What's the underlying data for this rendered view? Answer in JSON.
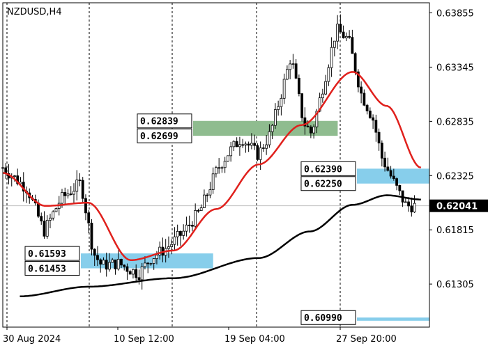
{
  "chart_data": {
    "type": "candlestick",
    "symbol_label": "NZDUSD,H4",
    "ylim": [
      0.609,
      0.6395
    ],
    "y_ticks": [
      "0.63855",
      "0.63345",
      "0.62835",
      "0.62325",
      "0.61815",
      "0.61305"
    ],
    "x_ticks": [
      "30 Aug 2024",
      "10 Sep 12:00",
      "19 Sep 04:00",
      "27 Sep 20:00"
    ],
    "last_price": "0.62041",
    "zones": [
      {
        "color": "#8fbc8f",
        "upper": "0.62839",
        "lower": "0.62699",
        "x0": 0.446,
        "x1": 0.785
      },
      {
        "color": "#87ceeb",
        "upper": "0.62390",
        "lower": "0.62250",
        "x0": 0.83,
        "x1": 1.0
      },
      {
        "color": "#87ceeb",
        "upper": "0.61593",
        "lower": "0.61453",
        "x0": 0.183,
        "x1": 0.493
      },
      {
        "color": "#87ceeb",
        "upper": "0.60990",
        "lower": "",
        "x0": 0.83,
        "x1": 1.0
      }
    ],
    "series": [
      {
        "name": "",
        "color": "#e0201c",
        "anchors": [
          [
            0,
            0.6235
          ],
          [
            0.1,
            0.6204
          ],
          [
            0.2,
            0.6207
          ],
          [
            0.3,
            0.6153
          ],
          [
            0.4,
            0.6162
          ],
          [
            0.5,
            0.6201
          ],
          [
            0.6,
            0.6243
          ],
          [
            0.7,
            0.628
          ],
          [
            0.82,
            0.633
          ],
          [
            0.9,
            0.6298
          ],
          [
            0.98,
            0.624
          ]
        ]
      },
      {
        "name": "",
        "color": "#000000",
        "anchors": [
          [
            0.04,
            0.6119
          ],
          [
            0.2,
            0.6128
          ],
          [
            0.4,
            0.6136
          ],
          [
            0.6,
            0.6155
          ],
          [
            0.72,
            0.618
          ],
          [
            0.82,
            0.6205
          ],
          [
            0.9,
            0.6214
          ],
          [
            0.98,
            0.621
          ]
        ]
      }
    ],
    "candle_path": [
      [
        0,
        0.624
      ],
      [
        0.06,
        0.622
      ],
      [
        0.1,
        0.618
      ],
      [
        0.14,
        0.621
      ],
      [
        0.19,
        0.6226
      ],
      [
        0.22,
        0.616
      ],
      [
        0.24,
        0.6148
      ],
      [
        0.28,
        0.615
      ],
      [
        0.33,
        0.614
      ],
      [
        0.36,
        0.6155
      ],
      [
        0.4,
        0.6165
      ],
      [
        0.44,
        0.618
      ],
      [
        0.48,
        0.62
      ],
      [
        0.52,
        0.6238
      ],
      [
        0.55,
        0.6255
      ],
      [
        0.58,
        0.6268
      ],
      [
        0.62,
        0.6252
      ],
      [
        0.65,
        0.6272
      ],
      [
        0.68,
        0.6315
      ],
      [
        0.7,
        0.6345
      ],
      [
        0.73,
        0.6283
      ],
      [
        0.75,
        0.6272
      ],
      [
        0.78,
        0.632
      ],
      [
        0.81,
        0.637
      ],
      [
        0.84,
        0.636
      ],
      [
        0.87,
        0.631
      ],
      [
        0.9,
        0.6285
      ],
      [
        0.92,
        0.625
      ],
      [
        0.96,
        0.6218
      ],
      [
        0.98,
        0.6204
      ]
    ]
  }
}
